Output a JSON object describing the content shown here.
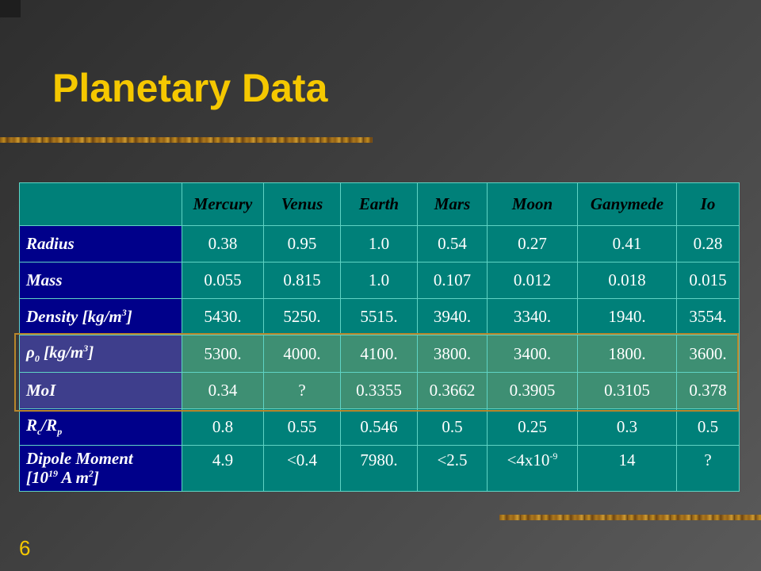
{
  "slide": {
    "title": "Planetary Data",
    "number": "6"
  },
  "table": {
    "columns": [
      "Mercury",
      "Venus",
      "Earth",
      "Mars",
      "Moon",
      "Ganymede",
      "Io"
    ],
    "rows": [
      {
        "label_main": "Radius",
        "values": [
          "0.38",
          "0.95",
          "1.0",
          "0.54",
          "0.27",
          "0.41",
          "0.28"
        ]
      },
      {
        "label_main": "Mass",
        "values": [
          "0.055",
          "0.815",
          "1.0",
          "0.107",
          "0.012",
          "0.018",
          "0.015"
        ]
      },
      {
        "label_main": "Density [kg/m",
        "label_sup": "3",
        "label_tail": "]",
        "values": [
          "5430.",
          "5250.",
          "5515.",
          "3940.",
          "3340.",
          "1940.",
          "3554."
        ]
      },
      {
        "label_sym": "ρ",
        "label_sub": "0",
        "label_main": " [kg/m",
        "label_sup": "3",
        "label_tail": "]",
        "values": [
          "5300.",
          "4000.",
          "4100.",
          "3800.",
          "3400.",
          "1800.",
          "3600."
        ]
      },
      {
        "label_main": "MoI",
        "values": [
          "0.34",
          "?",
          "0.3355",
          "0.3662",
          "0.3905",
          "0.3105",
          "0.378"
        ]
      },
      {
        "label_r1": "R",
        "label_sub1": "c",
        "label_r2": "/R",
        "label_sub2": "p",
        "values": [
          "0.8",
          "0.55",
          "0.546",
          "0.5",
          "0.25",
          "0.3",
          "0.5"
        ]
      },
      {
        "label_line1": "Dipole Moment",
        "label_line2a": "[10",
        "label_sup": "19",
        "label_line2b": " A m",
        "label_sup2": "2",
        "label_tail": "]",
        "values": [
          "4.9",
          "<0.4",
          "7980.",
          "<2.5",
          "<4x10",
          "14",
          "?"
        ],
        "moon_sup": "-9"
      }
    ]
  }
}
